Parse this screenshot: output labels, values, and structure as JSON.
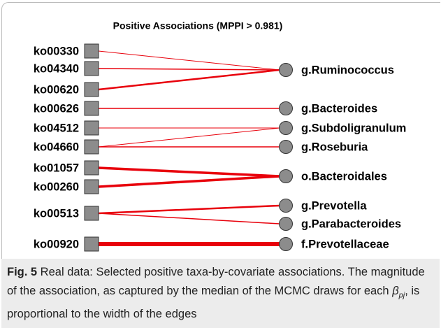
{
  "figure": {
    "title": "Positive Associations   (MPPI > 0.981)",
    "left_nodes": [
      "ko00330",
      "ko04340",
      "ko00620",
      "ko00626",
      "ko04512",
      "ko04660",
      "ko01057",
      "ko00260",
      "ko00513",
      "ko00920"
    ],
    "right_nodes": [
      "g.Ruminococcus",
      "g.Bacteroides",
      "g.Subdoligranulum",
      "g.Roseburia",
      "o.Bacteroidales",
      "g.Prevotella",
      "g.Parabacteroides",
      "f.Prevotellaceae"
    ]
  },
  "caption": {
    "label": "Fig. 5",
    "text_before": " Real data: Selected positive taxa-by-covariate associations. The magnitude of the association, as captured by the median of the MCMC draws for each ",
    "symbol": "β",
    "subscript": "pj",
    "text_after": ", is proportional to the width of the edges"
  }
}
